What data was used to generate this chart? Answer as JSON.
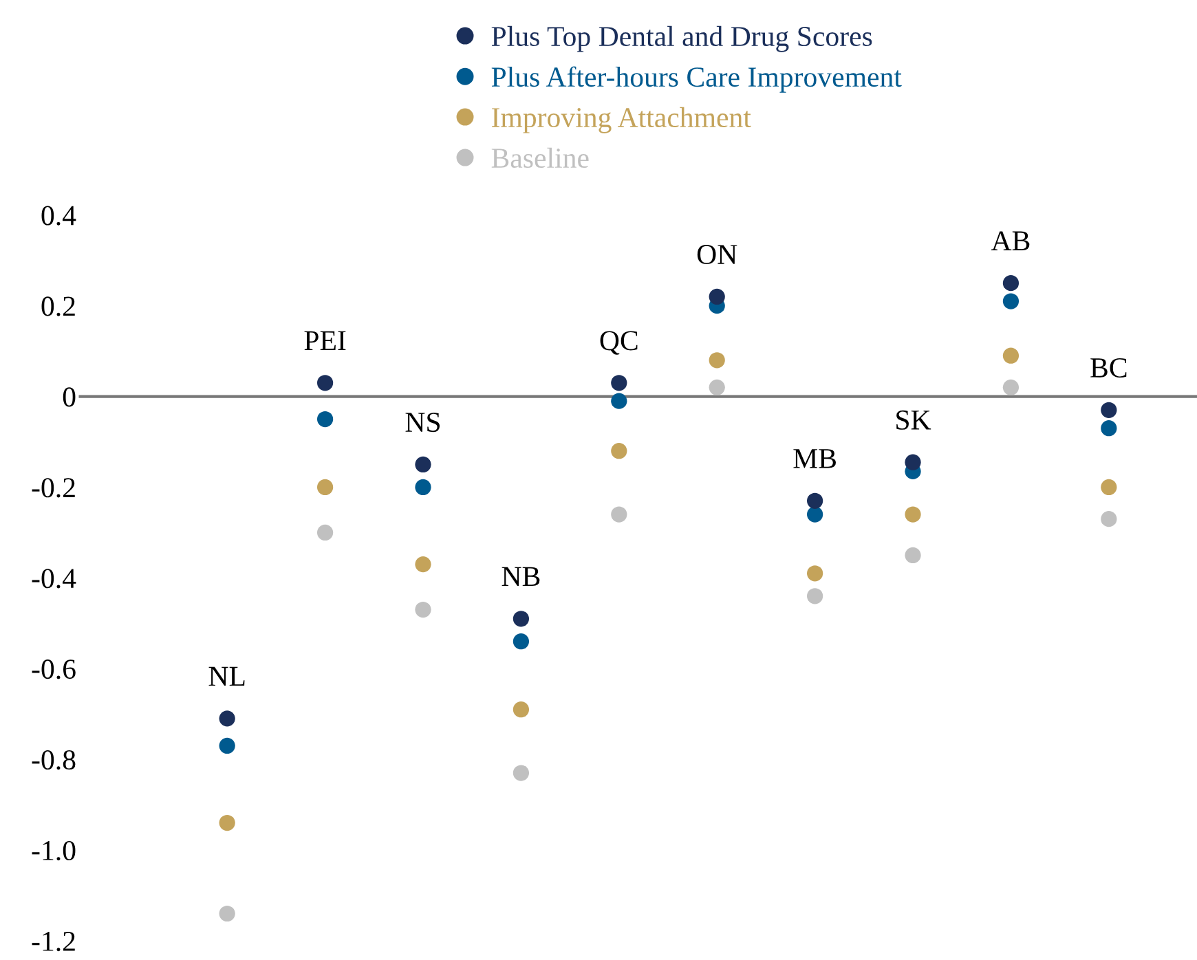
{
  "chart_data": {
    "type": "scatter",
    "categories": [
      "NL",
      "PEI",
      "NS",
      "NB",
      "QC",
      "ON",
      "MB",
      "SK",
      "AB",
      "BC"
    ],
    "series": [
      {
        "name": "Plus Top Dental and Drug Scores",
        "color": "#1b2f5a",
        "values": [
          -0.71,
          0.03,
          -0.15,
          -0.49,
          0.03,
          0.22,
          -0.23,
          -0.145,
          0.25,
          -0.03
        ]
      },
      {
        "name": "Plus After-hours Care Improvement",
        "color": "#005a8f",
        "values": [
          -0.77,
          -0.05,
          -0.2,
          -0.54,
          -0.01,
          0.2,
          -0.26,
          -0.165,
          0.21,
          -0.07
        ]
      },
      {
        "name": "Improving Attachment",
        "color": "#c4a35a",
        "values": [
          -0.94,
          -0.2,
          -0.37,
          -0.69,
          -0.12,
          0.08,
          -0.39,
          -0.26,
          0.09,
          -0.2
        ]
      },
      {
        "name": "Baseline",
        "color": "#c0c0c0",
        "values": [
          -1.14,
          -0.3,
          -0.47,
          -0.83,
          -0.26,
          0.02,
          -0.44,
          -0.35,
          0.02,
          -0.27
        ]
      }
    ],
    "ylim": [
      -1.2,
      0.4
    ],
    "yticks": [
      {
        "value": 0.4,
        "label": "0.4"
      },
      {
        "value": 0.2,
        "label": "0.2"
      },
      {
        "value": 0,
        "label": "0"
      },
      {
        "value": -0.2,
        "label": "-0.2"
      },
      {
        "value": -0.4,
        "label": "-0.4"
      },
      {
        "value": -0.6,
        "label": "-0.6"
      },
      {
        "value": -0.8,
        "label": "-0.8"
      },
      {
        "value": -1.0,
        "label": "-1.0"
      },
      {
        "value": -1.2,
        "label": "-1.2"
      }
    ],
    "marker": "circle",
    "legend": "top",
    "grid": false,
    "tick_labels": "y"
  }
}
